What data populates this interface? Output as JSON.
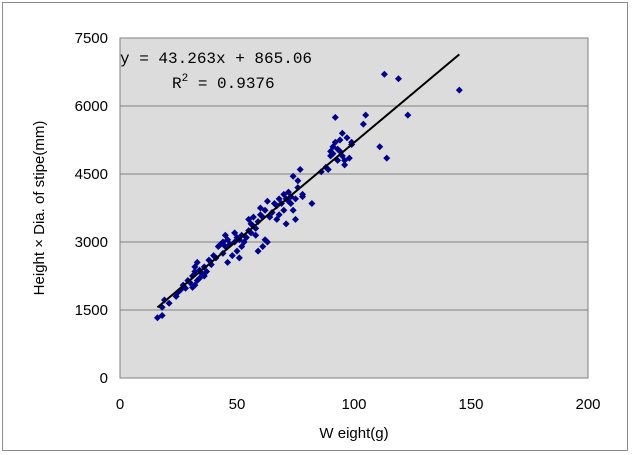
{
  "chart_data": {
    "type": "scatter",
    "xlabel": "W eight(g)",
    "ylabel": "Height × Dia. of stipe(mm)",
    "xlim": [
      0,
      200
    ],
    "ylim": [
      0,
      7500
    ],
    "x_ticks": [
      "0",
      "50",
      "100",
      "150",
      "200"
    ],
    "y_ticks": [
      "0",
      "1500",
      "3000",
      "4500",
      "6000",
      "7500"
    ],
    "grid": "horizontal",
    "plot_background": "#dcdcdc",
    "marker_color": "#00008b",
    "marker": "diamond",
    "trendline": {
      "type": "linear",
      "slope": 43.263,
      "intercept": 865.06,
      "x_range": [
        16,
        145
      ],
      "equation": "y = 43.263x + 865.06",
      "r2_label": "R",
      "r2_sup": "2",
      "r2_value": " = 0.9376"
    },
    "points": [
      [
        16,
        1330
      ],
      [
        18,
        1380
      ],
      [
        18,
        1560
      ],
      [
        19,
        1720
      ],
      [
        21,
        1650
      ],
      [
        24,
        1800
      ],
      [
        25,
        1900
      ],
      [
        26,
        1950
      ],
      [
        27,
        2050
      ],
      [
        28,
        1980
      ],
      [
        29,
        2150
      ],
      [
        30,
        2100
      ],
      [
        31,
        2000
      ],
      [
        31,
        2250
      ],
      [
        32,
        2050
      ],
      [
        32,
        2350
      ],
      [
        32,
        2450
      ],
      [
        33,
        2150
      ],
      [
        33,
        2550
      ],
      [
        34,
        2200
      ],
      [
        34,
        2380
      ],
      [
        35,
        2300
      ],
      [
        36,
        2450
      ],
      [
        36,
        2250
      ],
      [
        37,
        2350
      ],
      [
        38,
        2600
      ],
      [
        39,
        2500
      ],
      [
        40,
        2700
      ],
      [
        41,
        2650
      ],
      [
        42,
        2900
      ],
      [
        43,
        2950
      ],
      [
        44,
        2750
      ],
      [
        44,
        3000
      ],
      [
        45,
        2900
      ],
      [
        45,
        3150
      ],
      [
        46,
        2550
      ],
      [
        46,
        3050
      ],
      [
        47,
        2950
      ],
      [
        48,
        2700
      ],
      [
        49,
        3000
      ],
      [
        49,
        3200
      ],
      [
        50,
        2800
      ],
      [
        50,
        3100
      ],
      [
        51,
        2650
      ],
      [
        51,
        3050
      ],
      [
        52,
        3150
      ],
      [
        52,
        2900
      ],
      [
        53,
        3000
      ],
      [
        54,
        3100
      ],
      [
        55,
        3500
      ],
      [
        55,
        3250
      ],
      [
        56,
        3400
      ],
      [
        56,
        3200
      ],
      [
        57,
        3350
      ],
      [
        57,
        3550
      ],
      [
        58,
        3300
      ],
      [
        58,
        3150
      ],
      [
        59,
        3450
      ],
      [
        59,
        2800
      ],
      [
        60,
        3750
      ],
      [
        60,
        3600
      ],
      [
        61,
        3550
      ],
      [
        61,
        2900
      ],
      [
        62,
        3700
      ],
      [
        62,
        3050
      ],
      [
        63,
        3000
      ],
      [
        63,
        3900
      ],
      [
        64,
        3550
      ],
      [
        65,
        3650
      ],
      [
        66,
        3850
      ],
      [
        67,
        3800
      ],
      [
        67,
        3500
      ],
      [
        68,
        3600
      ],
      [
        68,
        3950
      ],
      [
        69,
        3850
      ],
      [
        70,
        4050
      ],
      [
        70,
        3700
      ],
      [
        71,
        3400
      ],
      [
        71,
        3950
      ],
      [
        72,
        3900
      ],
      [
        72,
        4100
      ],
      [
        73,
        3850
      ],
      [
        73,
        4000
      ],
      [
        74,
        3700
      ],
      [
        74,
        4450
      ],
      [
        75,
        3500
      ],
      [
        75,
        3950
      ],
      [
        76,
        4350
      ],
      [
        76,
        4200
      ],
      [
        77,
        4600
      ],
      [
        78,
        4000
      ],
      [
        78,
        4050
      ],
      [
        82,
        3850
      ],
      [
        86,
        4550
      ],
      [
        88,
        4650
      ],
      [
        89,
        4600
      ],
      [
        90,
        5000
      ],
      [
        90,
        4900
      ],
      [
        91,
        5100
      ],
      [
        91,
        4950
      ],
      [
        92,
        5200
      ],
      [
        92,
        5750
      ],
      [
        93,
        4800
      ],
      [
        93,
        5050
      ],
      [
        94,
        5000
      ],
      [
        94,
        5250
      ],
      [
        95,
        5400
      ],
      [
        95,
        4900
      ],
      [
        96,
        4700
      ],
      [
        96,
        4800
      ],
      [
        97,
        5300
      ],
      [
        98,
        4850
      ],
      [
        99,
        5150
      ],
      [
        99,
        5200
      ],
      [
        104,
        5600
      ],
      [
        105,
        5800
      ],
      [
        111,
        5100
      ],
      [
        113,
        6700
      ],
      [
        114,
        4850
      ],
      [
        119,
        6600
      ],
      [
        123,
        5800
      ],
      [
        145,
        6350
      ]
    ]
  }
}
